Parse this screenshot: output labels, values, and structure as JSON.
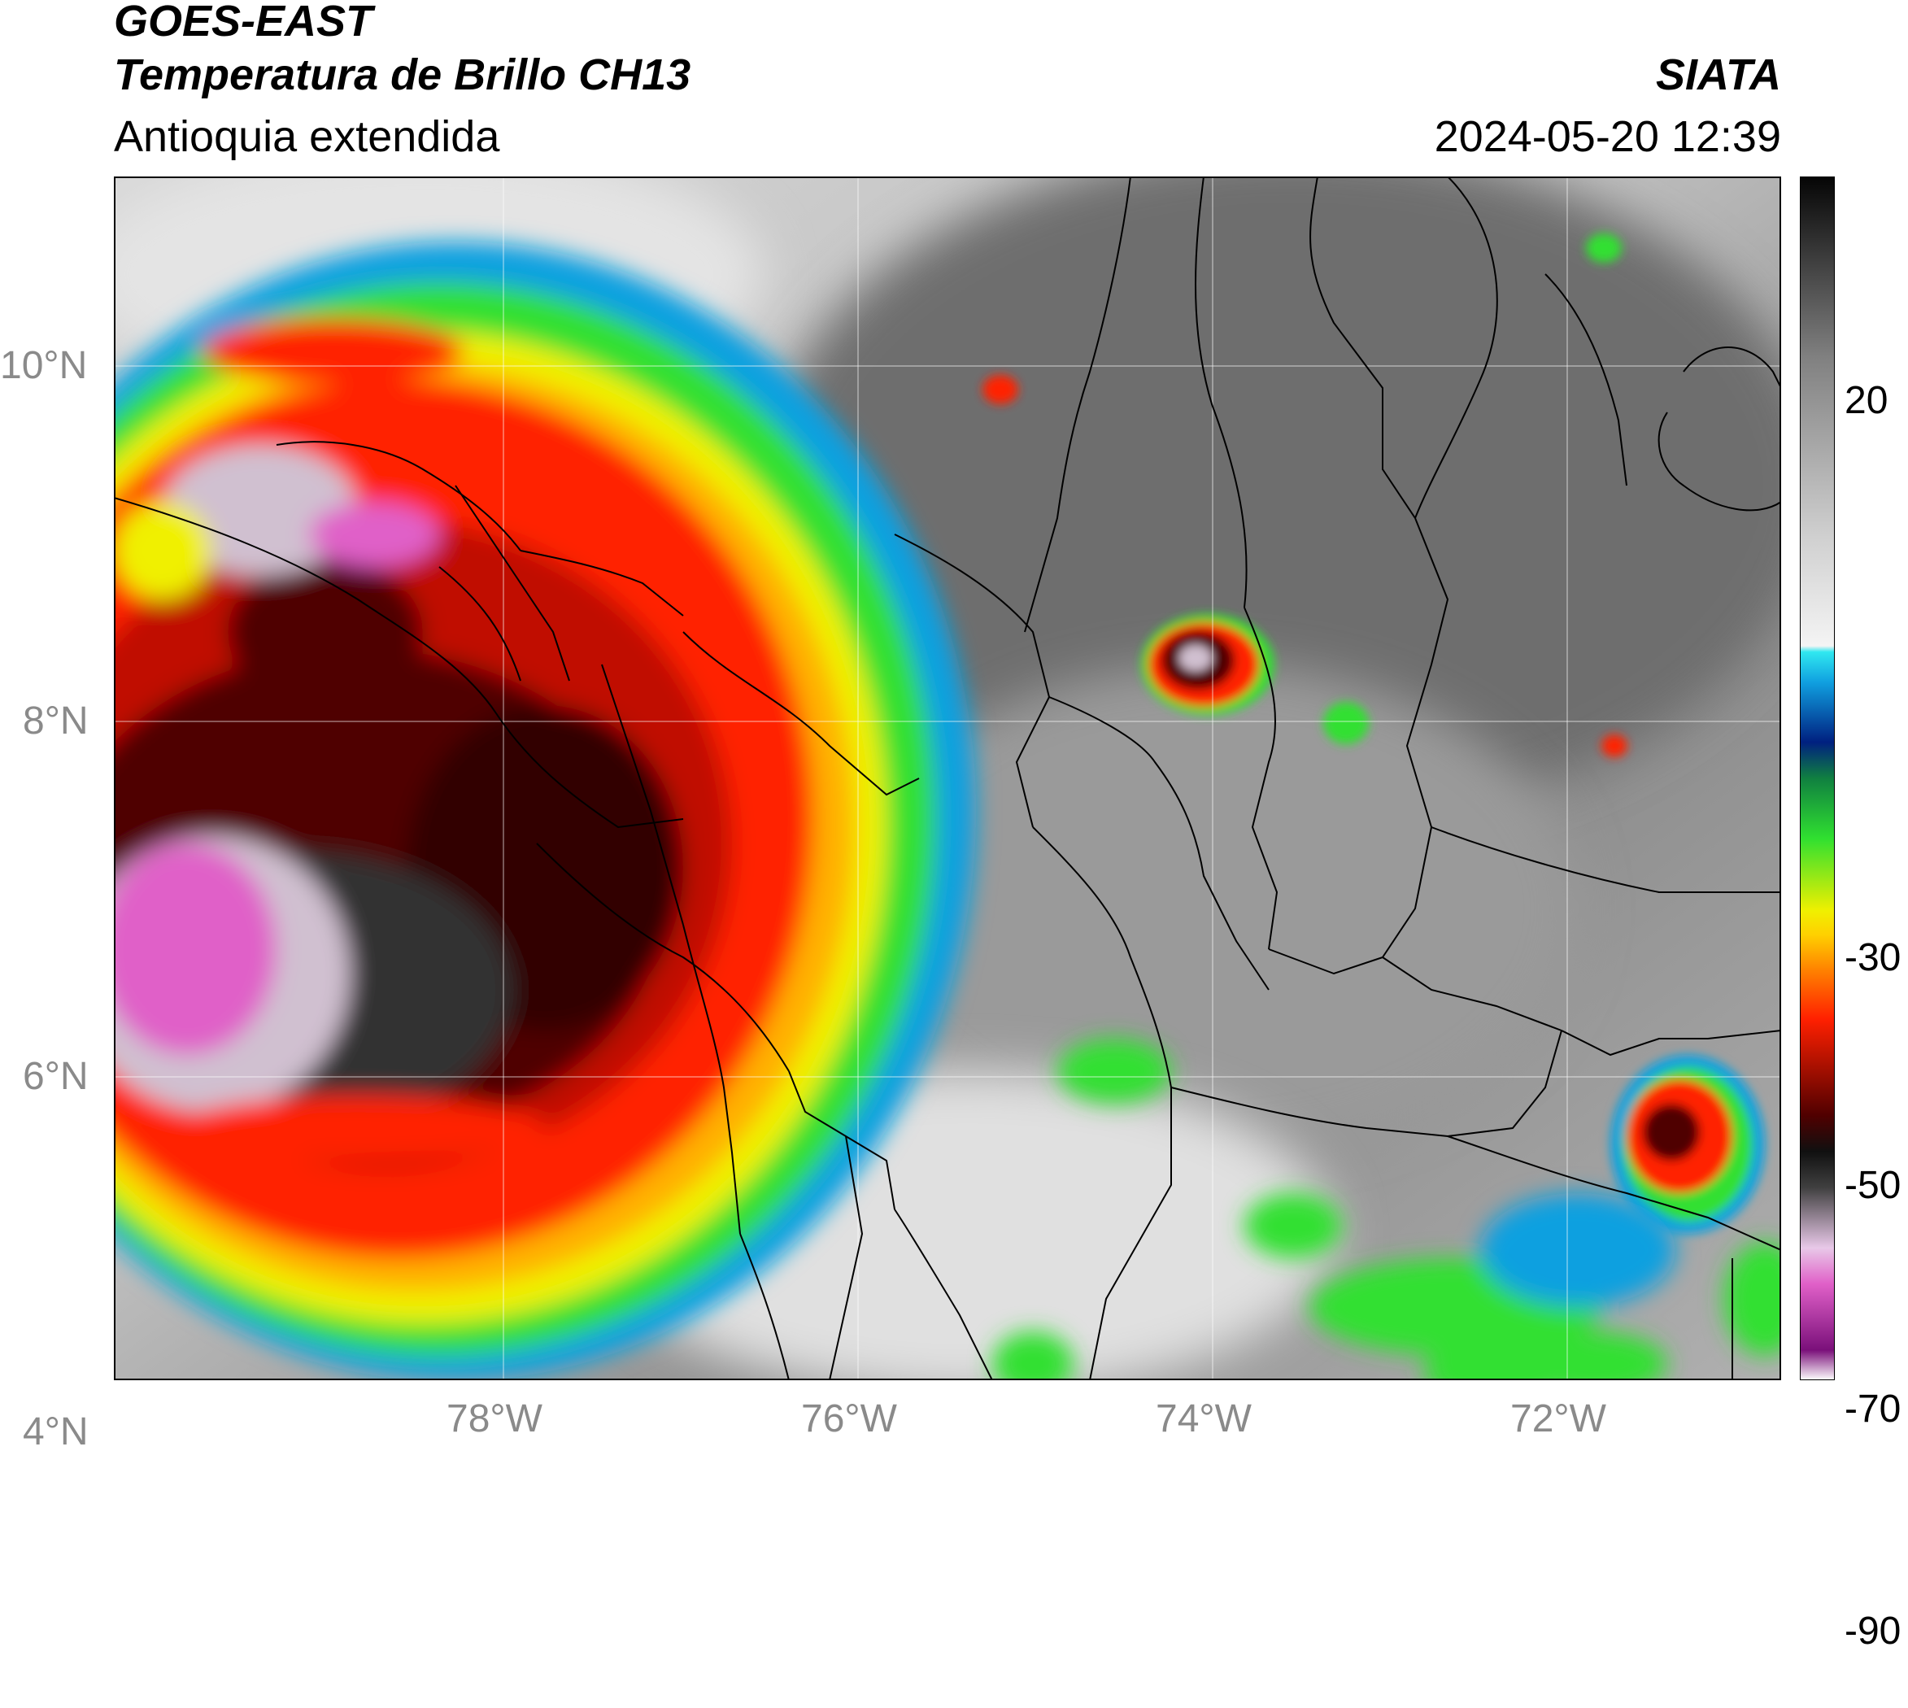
{
  "header": {
    "satellite": "GOES-EAST",
    "product": "Temperatura de Brillo CH13",
    "region": "Antioquia extendida",
    "organization": "SIATA",
    "datetime": "2024-05-20 12:39"
  },
  "map": {
    "lon_range": [
      -80.2,
      -70.8
    ],
    "lat_range": [
      2.7,
      11.05
    ],
    "lat_ticks": [
      "10°N",
      "8°N",
      "6°N",
      "4°N"
    ],
    "lon_ticks": [
      "78°W",
      "76°W",
      "74°W",
      "72°W"
    ],
    "gridlines": true
  },
  "colorbar": {
    "min": -90,
    "max": 37,
    "tick_labels": [
      "20",
      "-30",
      "-50",
      "-70",
      "-90"
    ],
    "palette": [
      "#ffffff",
      "#7a107a",
      "#e060c8",
      "#d0c0d0",
      "#303030",
      "#500000",
      "#ff2000",
      "#ffb000",
      "#f0f000",
      "#30e030",
      "#10a050",
      "#002080",
      "#10a0e0",
      "#30e8f0",
      "#e8e8e8",
      "#808080",
      "#101010"
    ]
  },
  "colors": {
    "border": "#000000",
    "tick_text": "#8a8a8a"
  }
}
